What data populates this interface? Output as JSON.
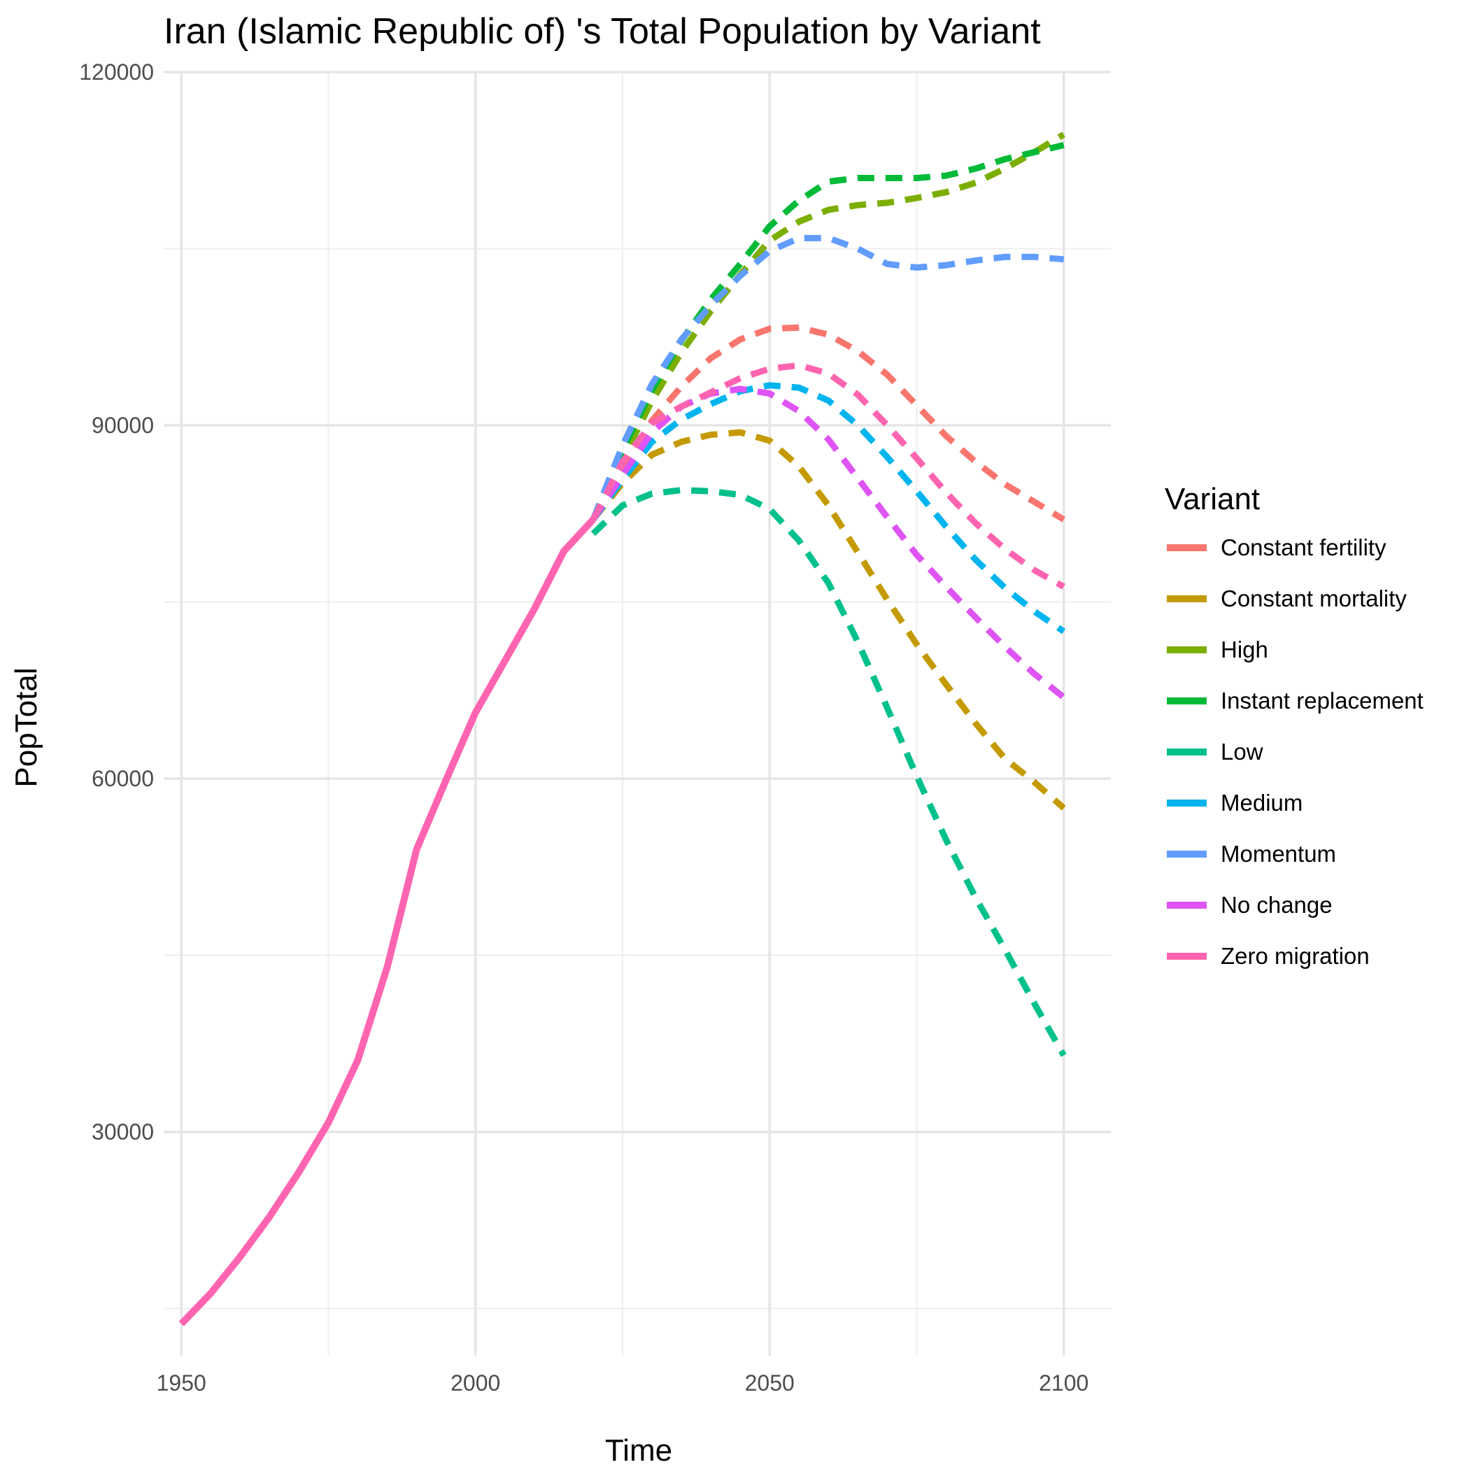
{
  "chart_data": {
    "type": "line",
    "title": "Iran (Islamic Republic of) 's Total Population by Variant",
    "xlabel": "Time",
    "ylabel": "PopTotal",
    "xlim": [
      1947,
      2108
    ],
    "ylim": [
      11000,
      120000
    ],
    "x_ticks": [
      1950,
      2000,
      2050,
      2100
    ],
    "x_tick_labels": [
      "1950",
      "2000",
      "2050",
      "2100"
    ],
    "x_minor_ticks": [
      1975,
      2025,
      2075
    ],
    "y_ticks": [
      30000,
      60000,
      90000,
      120000
    ],
    "y_tick_labels": [
      "30000",
      "60000",
      "90000",
      "120000"
    ],
    "y_minor_ticks": [
      15000,
      45000,
      75000,
      105000
    ],
    "grid": true,
    "legend": {
      "title": "Variant",
      "position": "right"
    },
    "series": [
      {
        "name": "Constant fertility",
        "color": "#F8766D",
        "style": "dashed",
        "x": [
          2020,
          2025,
          2030,
          2035,
          2040,
          2045,
          2050,
          2055,
          2060,
          2065,
          2070,
          2075,
          2080,
          2085,
          2090,
          2095,
          2100
        ],
        "y": [
          82000,
          86400,
          90400,
          93300,
          95700,
          97300,
          98200,
          98300,
          97700,
          96300,
          94300,
          91700,
          89100,
          86900,
          85000,
          83500,
          82000
        ]
      },
      {
        "name": "Constant mortality",
        "color": "#C49A00",
        "style": "dashed",
        "x": [
          2020,
          2025,
          2030,
          2035,
          2040,
          2045,
          2050,
          2055,
          2060,
          2065,
          2070,
          2075,
          2080,
          2085,
          2090,
          2095,
          2100
        ],
        "y": [
          82000,
          85100,
          87500,
          88600,
          89200,
          89400,
          88700,
          86500,
          83200,
          79200,
          75200,
          71400,
          68000,
          64700,
          61700,
          59700,
          57500
        ]
      },
      {
        "name": "High",
        "color": "#7CAE00",
        "style": "dashed",
        "x": [
          2020,
          2025,
          2030,
          2035,
          2040,
          2045,
          2050,
          2055,
          2060,
          2065,
          2070,
          2075,
          2080,
          2085,
          2090,
          2095,
          2100
        ],
        "y": [
          82000,
          87100,
          92100,
          96200,
          99700,
          102800,
          105700,
          107300,
          108300,
          108700,
          108900,
          109300,
          109800,
          110600,
          111800,
          113200,
          114700
        ]
      },
      {
        "name": "Instant replacement",
        "color": "#00BA38",
        "style": "dashed",
        "x": [
          2020,
          2025,
          2030,
          2035,
          2040,
          2045,
          2050,
          2055,
          2060,
          2065,
          2070,
          2075,
          2080,
          2085,
          2090,
          2095,
          2100
        ],
        "y": [
          82000,
          87900,
          93000,
          97200,
          100700,
          103700,
          106900,
          109100,
          110700,
          111000,
          111000,
          111000,
          111200,
          111800,
          112600,
          113200,
          113800
        ]
      },
      {
        "name": "Low",
        "color": "#00C08B",
        "style": "dashed",
        "x": [
          2020,
          2025,
          2030,
          2035,
          2040,
          2045,
          2050,
          2055,
          2060,
          2065,
          2070,
          2075,
          2080,
          2085,
          2090,
          2095,
          2100
        ],
        "y": [
          80800,
          83200,
          84200,
          84500,
          84400,
          84100,
          82900,
          80200,
          76600,
          71600,
          66000,
          60200,
          54800,
          49900,
          45500,
          40900,
          36500
        ]
      },
      {
        "name": "Medium",
        "color": "#00B4EF",
        "style": "dashed",
        "x": [
          2020,
          2025,
          2030,
          2035,
          2040,
          2045,
          2050,
          2055,
          2060,
          2065,
          2070,
          2075,
          2080,
          2085,
          2090,
          2095,
          2100
        ],
        "y": [
          82000,
          85400,
          88600,
          90500,
          91800,
          92900,
          93400,
          93200,
          92100,
          90000,
          87300,
          84400,
          81400,
          78600,
          76200,
          74200,
          72500
        ]
      },
      {
        "name": "Momentum",
        "color": "#619CFF",
        "style": "dashed",
        "x": [
          2020,
          2025,
          2030,
          2035,
          2040,
          2045,
          2050,
          2055,
          2060,
          2065,
          2070,
          2075,
          2080,
          2085,
          2090,
          2095,
          2100
        ],
        "y": [
          82000,
          88300,
          93500,
          97300,
          100200,
          102700,
          104800,
          105900,
          105900,
          105000,
          103700,
          103400,
          103600,
          104000,
          104300,
          104300,
          104100
        ]
      },
      {
        "name": "No change",
        "color": "#DE54F4",
        "style": "dashed",
        "x": [
          2020,
          2025,
          2030,
          2035,
          2040,
          2045,
          2050,
          2055,
          2060,
          2065,
          2070,
          2075,
          2080,
          2085,
          2090,
          2095,
          2100
        ],
        "y": [
          82000,
          85800,
          89400,
          91600,
          92700,
          93100,
          92700,
          91200,
          88800,
          85500,
          82200,
          79000,
          76300,
          73700,
          71200,
          68900,
          66900
        ]
      },
      {
        "name": "Zero migration",
        "color": "#FF64B0",
        "style": "solid+dashed",
        "x": [
          1950,
          1955,
          1960,
          1965,
          1970,
          1975,
          1980,
          1985,
          1990,
          1995,
          2000,
          2005,
          2010,
          2015,
          2020,
          2025,
          2030,
          2035,
          2040,
          2045,
          2050,
          2055,
          2060,
          2065,
          2070,
          2075,
          2080,
          2085,
          2090,
          2095,
          2100
        ],
        "y": [
          13700,
          16300,
          19400,
          22800,
          26600,
          30800,
          36100,
          44000,
          54000,
          59900,
          65600,
          70000,
          74400,
          79300,
          82000,
          86900,
          90200,
          91600,
          92800,
          94000,
          94800,
          95100,
          94400,
          92600,
          90000,
          87200,
          84300,
          81700,
          79500,
          77700,
          76300
        ],
        "solid_until": 2018
      }
    ]
  }
}
